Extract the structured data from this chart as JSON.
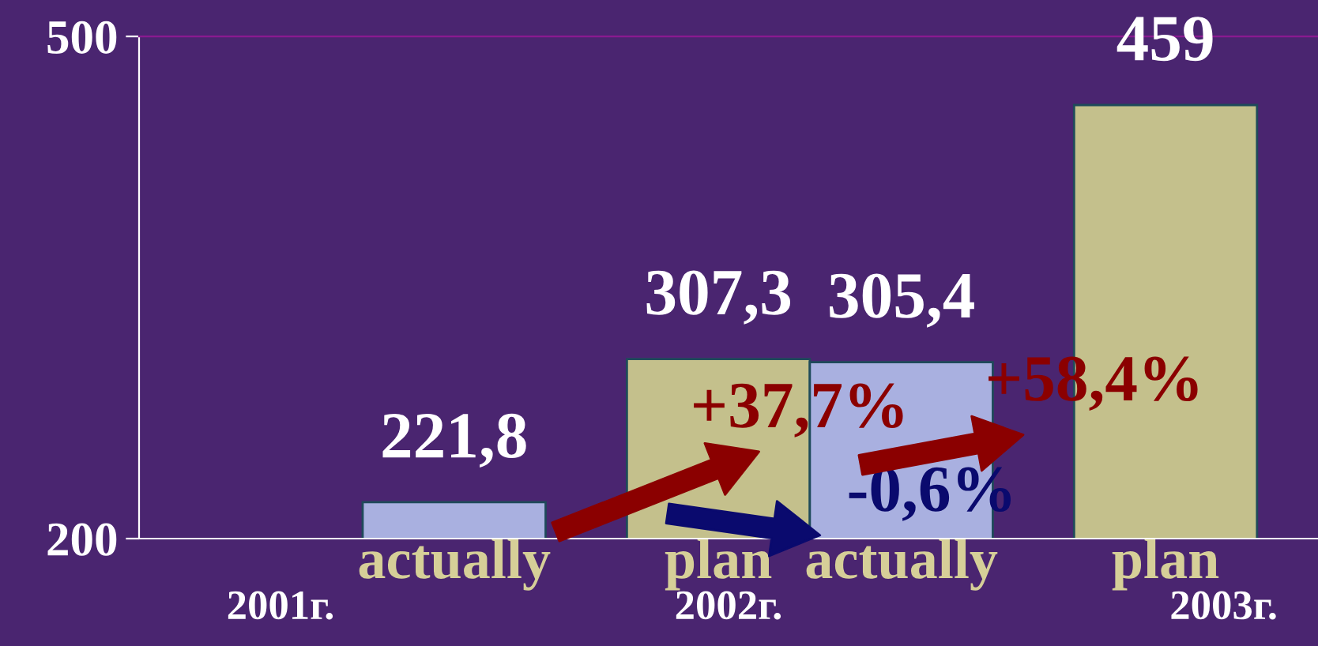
{
  "chart_data": {
    "type": "bar",
    "categories": [
      "actually",
      "plan",
      "actually",
      "plan"
    ],
    "values": [
      221.8,
      307.3,
      305.4,
      459
    ],
    "colors": [
      "#a9b0e0",
      "#c4c08c",
      "#a9b0e0",
      "#c4c08c"
    ],
    "value_labels": [
      "221,8",
      "307,3",
      "305,4",
      "459"
    ],
    "ylim": [
      200,
      500
    ],
    "yticks": [
      200,
      500
    ],
    "grid": false,
    "annotations": [
      "2001г.",
      "2002г.",
      "2003г.",
      "+37,7%",
      "-0,6%",
      "+58,4%"
    ]
  }
}
